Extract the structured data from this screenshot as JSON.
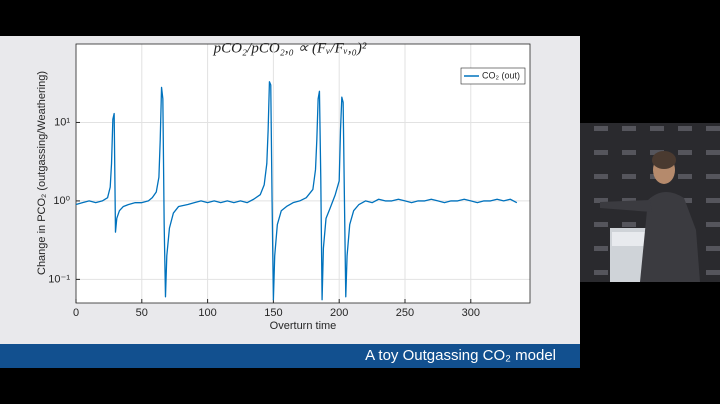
{
  "chart_data": {
    "type": "line",
    "title": "pCO₂/pCO₂,₀ ∝ (Fᵥ/Fᵥ,₀)²",
    "x_label": "Overturn time",
    "y_label": "Change in PCO₂ (outgassing/Weathering)",
    "x": [
      0,
      5,
      10,
      15,
      20,
      24,
      26,
      27,
      28,
      29,
      30,
      31,
      33,
      36,
      40,
      45,
      50,
      55,
      58,
      61,
      63,
      64,
      65,
      66,
      67,
      68,
      69,
      71,
      74,
      78,
      85,
      90,
      95,
      100,
      105,
      110,
      115,
      120,
      125,
      130,
      135,
      140,
      143,
      145,
      146,
      147,
      148,
      149,
      150,
      151,
      153,
      156,
      160,
      165,
      170,
      175,
      180,
      182,
      183,
      184,
      185,
      186,
      187,
      188,
      190,
      193,
      197,
      200,
      201,
      202,
      203,
      204,
      205,
      206,
      208,
      211,
      215,
      220,
      225,
      230,
      235,
      240,
      245,
      250,
      255,
      260,
      265,
      270,
      275,
      280,
      285,
      290,
      295,
      300,
      305,
      310,
      315,
      320,
      325,
      330,
      335
    ],
    "series": [
      {
        "name": "CO₂ (out)",
        "color": "#0072bd",
        "values": [
          0.9,
          0.95,
          1.0,
          0.95,
          1.0,
          1.1,
          1.5,
          3,
          11,
          13,
          0.4,
          0.6,
          0.75,
          0.85,
          0.9,
          0.95,
          0.95,
          1.0,
          1.1,
          1.3,
          2,
          6,
          28,
          20,
          0.5,
          0.06,
          0.2,
          0.45,
          0.7,
          0.85,
          0.9,
          0.95,
          1.0,
          0.95,
          1.0,
          0.95,
          1.0,
          0.95,
          1.0,
          0.95,
          1.05,
          1.2,
          1.6,
          3,
          8,
          33,
          30,
          1,
          0.055,
          0.2,
          0.5,
          0.75,
          0.85,
          0.95,
          1.0,
          1.1,
          1.4,
          2.5,
          6,
          20,
          25,
          2,
          0.055,
          0.25,
          0.6,
          0.8,
          1.2,
          1.8,
          8,
          21,
          18,
          1,
          0.06,
          0.2,
          0.5,
          0.75,
          0.9,
          1.0,
          0.95,
          1.05,
          1.0,
          1.0,
          1.05,
          1.0,
          0.95,
          1.0,
          1.0,
          1.05,
          1.0,
          0.95,
          1.0,
          1.0,
          1.05,
          1.0,
          0.95,
          1.0,
          1.0,
          1.05,
          1.0,
          1.05,
          0.95
        ]
      }
    ],
    "xlim": [
      0,
      345
    ],
    "xticks": [
      0,
      50,
      100,
      150,
      200,
      250,
      300
    ],
    "ylim": [
      0.05,
      100
    ],
    "yticks": [
      {
        "value": 0.1,
        "label": "10⁻¹"
      },
      {
        "value": 1,
        "label": "10⁰"
      },
      {
        "value": 10,
        "label": "10¹"
      }
    ],
    "log_y": true,
    "grid": true,
    "legend": "upper right"
  },
  "footer": "A toy Outgassing CO₂ model"
}
